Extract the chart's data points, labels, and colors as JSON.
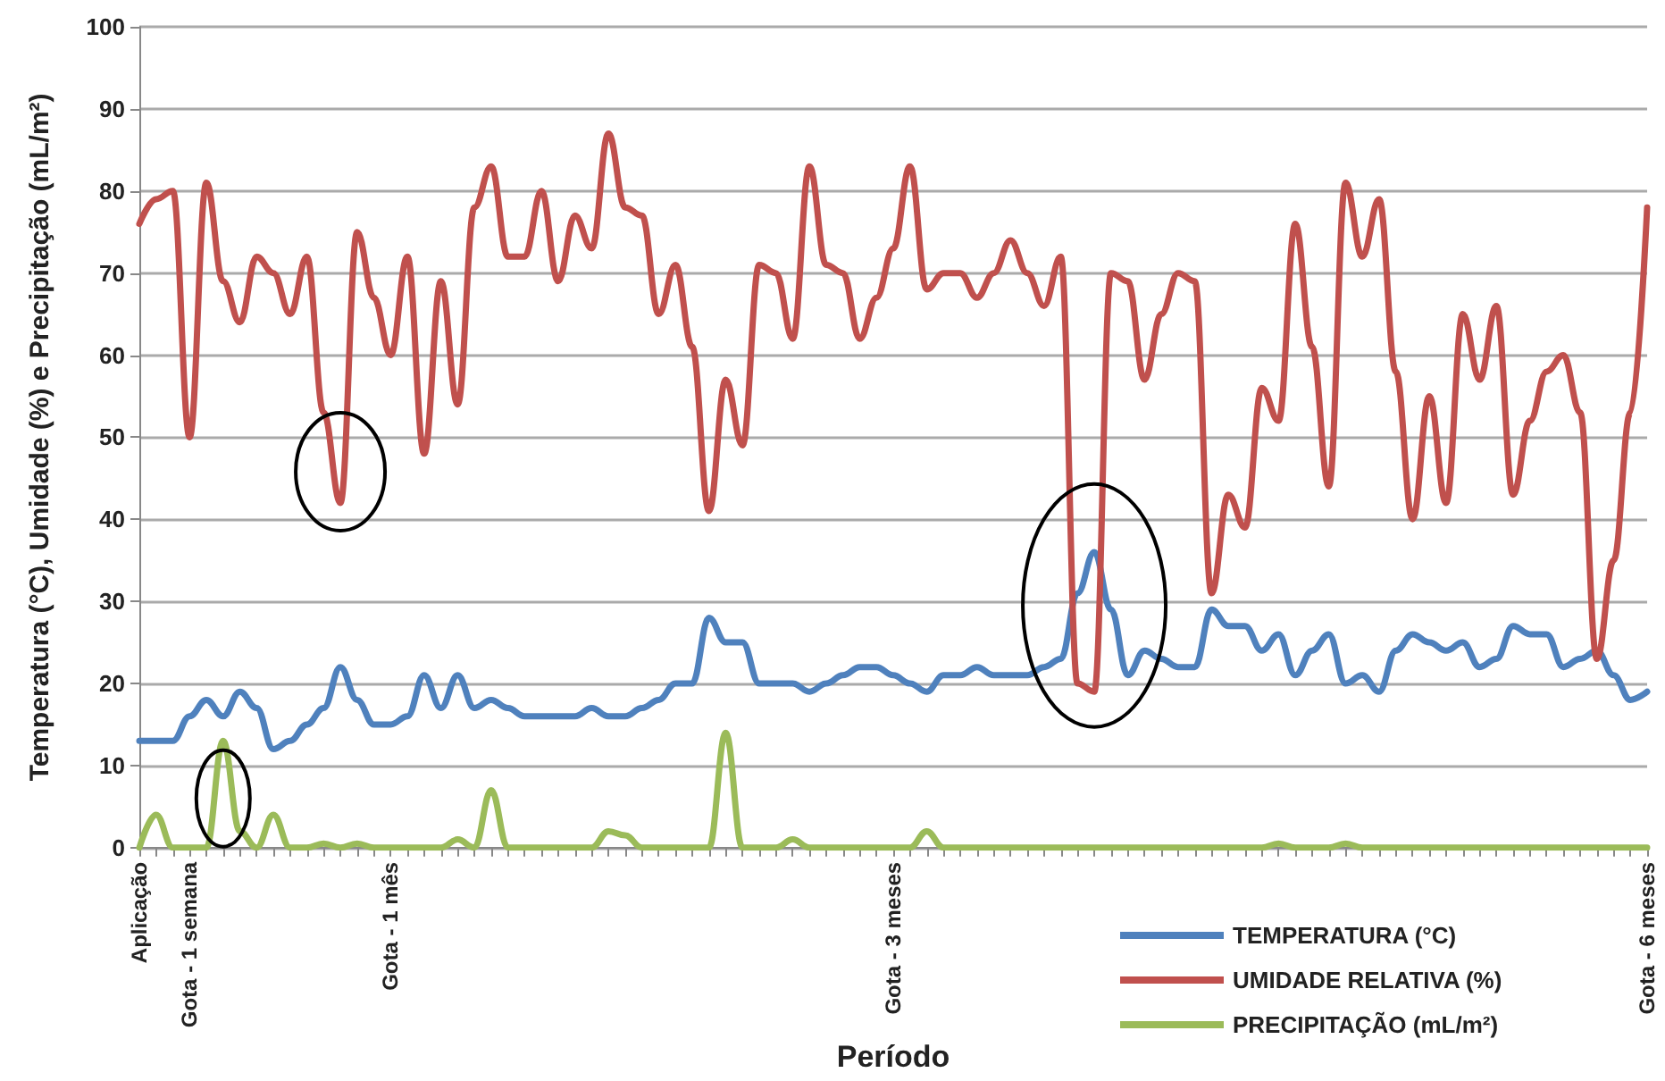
{
  "chart_data": {
    "type": "line",
    "ylabel": "Temperatura (°C), Umidade (%) e Precipitação (mL/m²)",
    "xlabel": "Período",
    "categories": [
      "Aplicação",
      null,
      null,
      "Gota - 1 semana",
      null,
      null,
      null,
      null,
      null,
      null,
      null,
      null,
      null,
      null,
      null,
      "Gota - 1 mês",
      null,
      null,
      null,
      null,
      null,
      null,
      null,
      null,
      null,
      null,
      null,
      null,
      null,
      null,
      null,
      null,
      null,
      null,
      null,
      null,
      null,
      null,
      null,
      null,
      null,
      null,
      null,
      null,
      null,
      "Gota - 3 meses",
      null,
      null,
      null,
      null,
      null,
      null,
      null,
      null,
      null,
      null,
      null,
      null,
      null,
      null,
      null,
      null,
      null,
      null,
      null,
      null,
      null,
      null,
      null,
      null,
      null,
      null,
      null,
      null,
      null,
      null,
      null,
      null,
      null,
      null,
      null,
      null,
      null,
      null,
      null,
      null,
      null,
      null,
      null,
      null,
      "Gota - 6 meses"
    ],
    "ylim": [
      0,
      100
    ],
    "yticks": [
      0,
      10,
      20,
      30,
      40,
      50,
      60,
      70,
      80,
      90,
      100
    ],
    "grid": "y",
    "legend": "bottom right",
    "marker": "none",
    "line_style": "solid",
    "series": [
      {
        "name": "TEMPERATURA (°C)",
        "color": "#4f81bd",
        "values": [
          13,
          13,
          13,
          16,
          18,
          16,
          19,
          17,
          12,
          13,
          15,
          17,
          22,
          18,
          15,
          15,
          16,
          21,
          17,
          21,
          17,
          18,
          17,
          16,
          16,
          16,
          16,
          17,
          16,
          16,
          17,
          18,
          20,
          20,
          28,
          25,
          25,
          20,
          20,
          20,
          19,
          20,
          21,
          22,
          22,
          21,
          20,
          19,
          21,
          21,
          22,
          21,
          21,
          21,
          22,
          23,
          31,
          36,
          29,
          21,
          24,
          23,
          22,
          22,
          29,
          27,
          27,
          24,
          26,
          21,
          24,
          26,
          20,
          21,
          19,
          24,
          26,
          25,
          24,
          25,
          22,
          23,
          27,
          26,
          26,
          22,
          23,
          24,
          21,
          18,
          19
        ]
      },
      {
        "name": "UMIDADE RELATIVA (%)",
        "color": "#c0504d",
        "values": [
          76,
          79,
          80,
          50,
          81,
          69,
          64,
          72,
          70,
          65,
          72,
          53,
          42,
          75,
          67,
          60,
          72,
          48,
          69,
          54,
          78,
          83,
          72,
          72,
          80,
          69,
          77,
          73,
          87,
          78,
          77,
          65,
          71,
          61,
          41,
          57,
          49,
          71,
          70,
          62,
          83,
          71,
          70,
          62,
          67,
          73,
          83,
          68,
          70,
          70,
          67,
          70,
          74,
          70,
          66,
          72,
          20,
          19,
          70,
          69,
          57,
          65,
          70,
          69,
          31,
          43,
          39,
          56,
          52,
          76,
          61,
          44,
          81,
          72,
          79,
          58,
          40,
          55,
          42,
          65,
          57,
          66,
          43,
          52,
          58,
          60,
          53,
          23,
          35,
          53,
          78
        ]
      },
      {
        "name": "PRECIPITAÇÃO (mL/m²)",
        "color": "#9bbb59",
        "values": [
          0,
          4,
          0,
          0,
          0,
          13,
          2,
          0,
          4,
          0,
          0,
          0.5,
          0,
          0.5,
          0,
          0,
          0,
          0,
          0,
          1,
          0,
          7,
          0,
          0,
          0,
          0,
          0,
          0,
          2,
          1.5,
          0,
          0,
          0,
          0,
          0,
          14,
          0,
          0,
          0,
          1,
          0,
          0,
          0,
          0,
          0,
          0,
          0,
          2,
          0,
          0,
          0,
          0,
          0,
          0,
          0,
          0,
          0,
          0,
          0,
          0,
          0,
          0,
          0,
          0,
          0,
          0,
          0,
          0,
          0.5,
          0,
          0,
          0,
          0.5,
          0,
          0,
          0,
          0,
          0,
          0,
          0,
          0,
          0,
          0,
          0,
          0,
          0,
          0,
          0,
          0,
          0,
          0
        ]
      }
    ]
  }
}
